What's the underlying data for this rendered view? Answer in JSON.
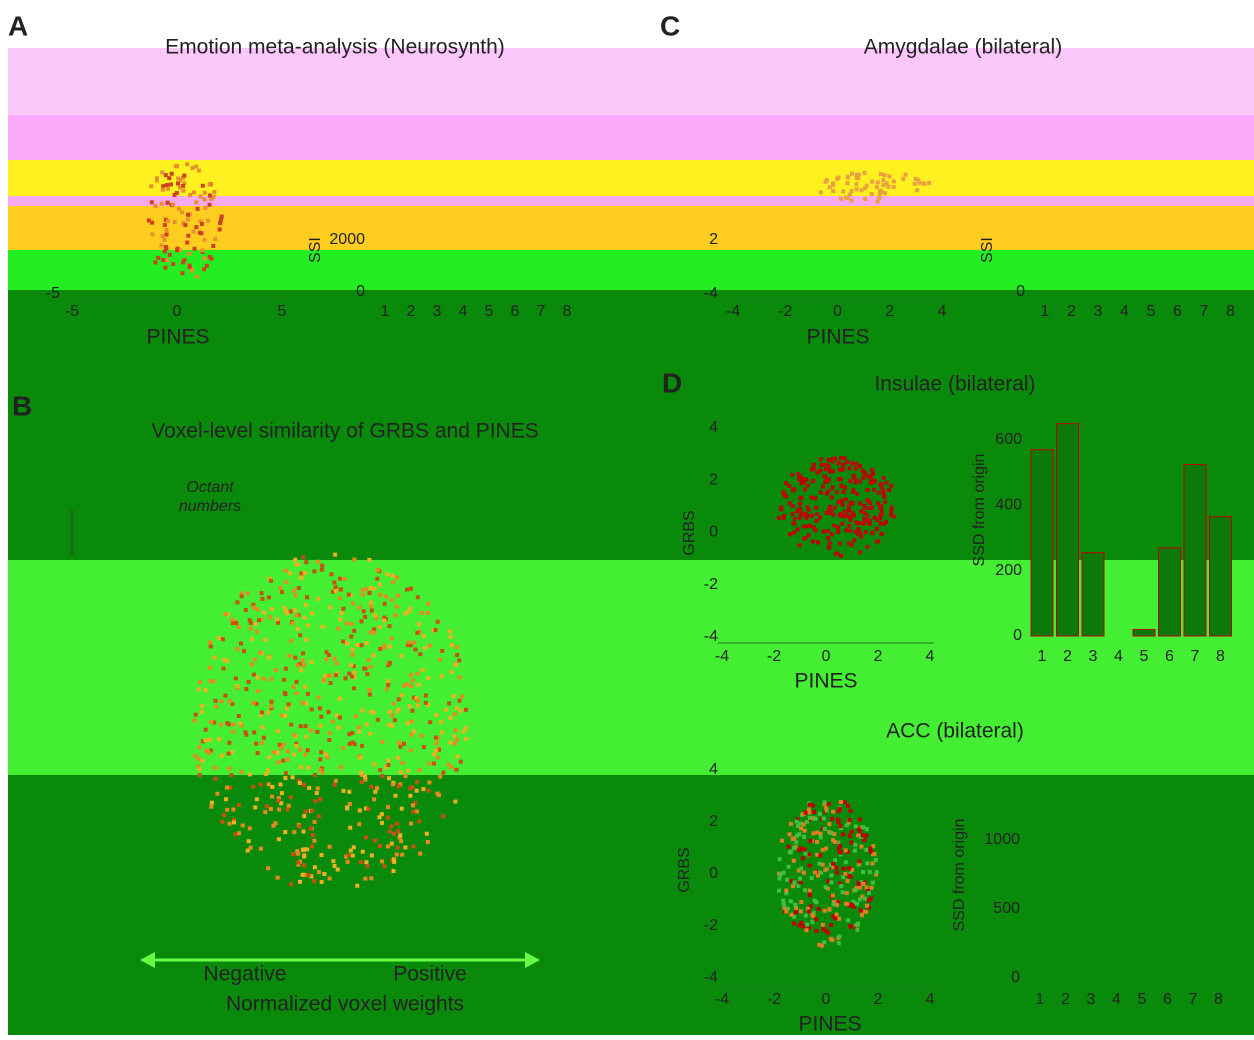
{
  "panels": [
    {
      "letter": "A",
      "title": "Emotion meta-analysis (Neurosynth)",
      "scatter": {
        "xlabel": "PINES",
        "xticks": [
          -5,
          0,
          5
        ],
        "yticks": [
          -5
        ]
      },
      "bars": {
        "ylabel": "SSI",
        "yticks": [
          0,
          2000
        ],
        "categories": [
          1,
          2,
          3,
          4,
          5,
          6,
          7,
          8
        ]
      }
    },
    {
      "letter": "C",
      "title": "Amygdalae (bilateral)",
      "scatter": {
        "xlabel": "PINES",
        "xticks": [
          -4,
          -2,
          0,
          2,
          4
        ],
        "yticks": [
          2,
          -4
        ]
      },
      "bars": {
        "ylabel": "SSI",
        "yticks": [
          0
        ],
        "categories": [
          1,
          2,
          3,
          4,
          5,
          6,
          7,
          8
        ]
      }
    },
    {
      "letter": "B",
      "title": "Voxel-level similarity of GRBS and PINES",
      "annotation": [
        "Octant",
        "numbers"
      ],
      "arrow_labels": [
        "Negative",
        "Positive"
      ],
      "xlabel": "Normalized voxel weights"
    },
    {
      "letter": "D",
      "title": "Insulae (bilateral)",
      "scatter": {
        "xlabel": "PINES",
        "ylabel": "GRBS",
        "xticks": [
          -4,
          -2,
          0,
          2,
          4
        ],
        "yticks": [
          4,
          2,
          0,
          -2,
          -4
        ]
      },
      "bars": {
        "ylabel": "SSD from origin",
        "yticks": [
          0,
          200,
          400,
          600
        ],
        "categories": [
          1,
          2,
          3,
          4,
          5,
          6,
          7,
          8
        ],
        "values": [
          570,
          650,
          255,
          0,
          20,
          270,
          525,
          365
        ]
      }
    },
    {
      "title": "ACC (bilateral)",
      "scatter": {
        "xlabel": "PINES",
        "ylabel": "GRBS",
        "xticks": [
          -4,
          -2,
          0,
          2,
          4
        ],
        "yticks": [
          4,
          2,
          0,
          -2,
          -4
        ]
      },
      "bars": {
        "ylabel": "SSD from origin",
        "yticks": [
          0,
          500,
          1000
        ],
        "categories": [
          1,
          2,
          3,
          4,
          5,
          6,
          7,
          8
        ]
      }
    }
  ]
}
